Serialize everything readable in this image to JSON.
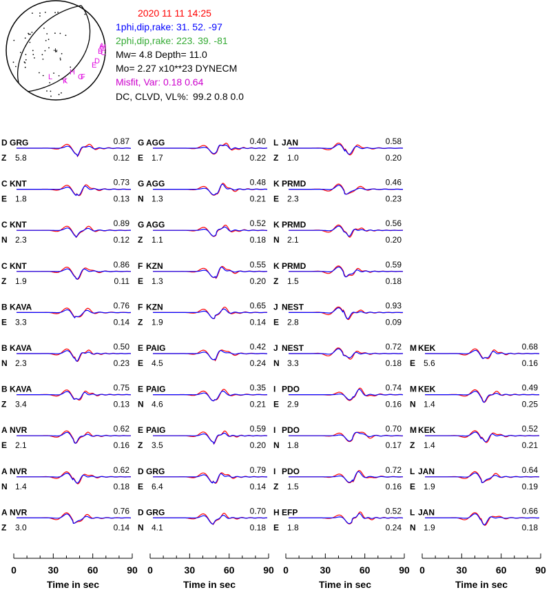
{
  "header": {
    "datetime": "2020 11 11    14:25",
    "plane1": "1phi,dip,rake:  31. 52.  -97",
    "plane2": "2phi,dip,rake: 223. 39.  -81",
    "mw_depth": "Mw=  4.8    Depth=   11.0",
    "moment": "Mo=  2.27 x10**23 DYNECM",
    "misfit": "Misfit, Var:     0.18       0.64",
    "dc_label": "DC, CLVD, VL%:",
    "dc_values": "99.2    0.8    0.0",
    "colors": {
      "datetime": "#ff0000",
      "plane1": "#0000ff",
      "plane2": "#33aa33",
      "misfit": "#cc00cc",
      "text": "#000000"
    }
  },
  "beachball": {
    "station_marks": [
      "A",
      "B",
      "C",
      "D",
      "E",
      "F",
      "G",
      "H",
      "I",
      "K",
      "L",
      "M"
    ],
    "mark_color": "#ee11ee"
  },
  "chart_data": {
    "type": "line",
    "x_axis": {
      "label": "Time  in sec",
      "ticks": [
        0,
        30,
        60,
        90
      ],
      "range": [
        0,
        90
      ]
    },
    "series_colors": {
      "observed": "#ff0000",
      "synthetic": "#0000ff"
    },
    "columns": [
      {
        "panels": [
          {
            "code": "D",
            "station": "GRG",
            "comp": "Z",
            "shift": "5.8",
            "corr": "0.87",
            "var": "0.12"
          },
          {
            "code": "C",
            "station": "KNT",
            "comp": "E",
            "shift": "1.8",
            "corr": "0.73",
            "var": "0.13"
          },
          {
            "code": "C",
            "station": "KNT",
            "comp": "N",
            "shift": "2.3",
            "corr": "0.89",
            "var": "0.12"
          },
          {
            "code": "C",
            "station": "KNT",
            "comp": "Z",
            "shift": "1.9",
            "corr": "0.86",
            "var": "0.11"
          },
          {
            "code": "B",
            "station": "KAVA",
            "comp": "E",
            "shift": "3.3",
            "corr": "0.76",
            "var": "0.14"
          },
          {
            "code": "B",
            "station": "KAVA",
            "comp": "N",
            "shift": "2.3",
            "corr": "0.50",
            "var": "0.23"
          },
          {
            "code": "B",
            "station": "KAVA",
            "comp": "Z",
            "shift": "3.4",
            "corr": "0.75",
            "var": "0.13"
          },
          {
            "code": "A",
            "station": "NVR",
            "comp": "E",
            "shift": "2.1",
            "corr": "0.62",
            "var": "0.16"
          },
          {
            "code": "A",
            "station": "NVR",
            "comp": "N",
            "shift": "1.4",
            "corr": "0.62",
            "var": "0.18"
          },
          {
            "code": "A",
            "station": "NVR",
            "comp": "Z",
            "shift": "3.0",
            "corr": "0.76",
            "var": "0.14"
          }
        ]
      },
      {
        "panels": [
          {
            "code": "G",
            "station": "AGG",
            "comp": "E",
            "shift": "1.7",
            "corr": "0.40",
            "var": "0.22"
          },
          {
            "code": "G",
            "station": "AGG",
            "comp": "N",
            "shift": "1.3",
            "corr": "0.48",
            "var": "0.21"
          },
          {
            "code": "G",
            "station": "AGG",
            "comp": "Z",
            "shift": "1.1",
            "corr": "0.52",
            "var": "0.18"
          },
          {
            "code": "F",
            "station": "KZN",
            "comp": "E",
            "shift": "1.3",
            "corr": "0.55",
            "var": "0.20"
          },
          {
            "code": "F",
            "station": "KZN",
            "comp": "Z",
            "shift": "1.9",
            "corr": "0.65",
            "var": "0.14"
          },
          {
            "code": "E",
            "station": "PAIG",
            "comp": "E",
            "shift": "4.5",
            "corr": "0.42",
            "var": "0.24"
          },
          {
            "code": "E",
            "station": "PAIG",
            "comp": "N",
            "shift": "4.6",
            "corr": "0.35",
            "var": "0.21"
          },
          {
            "code": "E",
            "station": "PAIG",
            "comp": "Z",
            "shift": "3.5",
            "corr": "0.59",
            "var": "0.20"
          },
          {
            "code": "D",
            "station": "GRG",
            "comp": "E",
            "shift": "6.4",
            "corr": "0.79",
            "var": "0.14"
          },
          {
            "code": "D",
            "station": "GRG",
            "comp": "N",
            "shift": "4.1",
            "corr": "0.70",
            "var": "0.18"
          }
        ]
      },
      {
        "panels": [
          {
            "code": "L",
            "station": "JAN",
            "comp": "Z",
            "shift": "1.0",
            "corr": "0.58",
            "var": "0.20"
          },
          {
            "code": "K",
            "station": "PRMD",
            "comp": "E",
            "shift": "2.3",
            "corr": "0.46",
            "var": "0.23"
          },
          {
            "code": "K",
            "station": "PRMD",
            "comp": "N",
            "shift": "2.1",
            "corr": "0.56",
            "var": "0.20"
          },
          {
            "code": "K",
            "station": "PRMD",
            "comp": "Z",
            "shift": "1.5",
            "corr": "0.59",
            "var": "0.18"
          },
          {
            "code": "J",
            "station": "NEST",
            "comp": "E",
            "shift": "2.8",
            "corr": "0.93",
            "var": "0.09"
          },
          {
            "code": "J",
            "station": "NEST",
            "comp": "N",
            "shift": "3.3",
            "corr": "0.72",
            "var": "0.18"
          },
          {
            "code": "I",
            "station": "PDO",
            "comp": "E",
            "shift": "2.9",
            "corr": "0.74",
            "var": "0.16"
          },
          {
            "code": "I",
            "station": "PDO",
            "comp": "N",
            "shift": "1.8",
            "corr": "0.70",
            "var": "0.17"
          },
          {
            "code": "I",
            "station": "PDO",
            "comp": "Z",
            "shift": "1.5",
            "corr": "0.72",
            "var": "0.16"
          },
          {
            "code": "H",
            "station": "EFP",
            "comp": "E",
            "shift": "1.8",
            "corr": "0.52",
            "var": "0.24"
          }
        ]
      },
      {
        "panels": [
          null,
          null,
          null,
          null,
          null,
          {
            "code": "M",
            "station": "KEK",
            "comp": "E",
            "shift": "5.6",
            "corr": "0.68",
            "var": "0.16"
          },
          {
            "code": "M",
            "station": "KEK",
            "comp": "N",
            "shift": "1.4",
            "corr": "0.49",
            "var": "0.25"
          },
          {
            "code": "M",
            "station": "KEK",
            "comp": "Z",
            "shift": "1.4",
            "corr": "0.52",
            "var": "0.21"
          },
          {
            "code": "L",
            "station": "JAN",
            "comp": "E",
            "shift": "1.9",
            "corr": "0.64",
            "var": "0.19"
          },
          {
            "code": "L",
            "station": "JAN",
            "comp": "N",
            "shift": "1.9",
            "corr": "0.66",
            "var": "0.18"
          }
        ]
      }
    ]
  }
}
